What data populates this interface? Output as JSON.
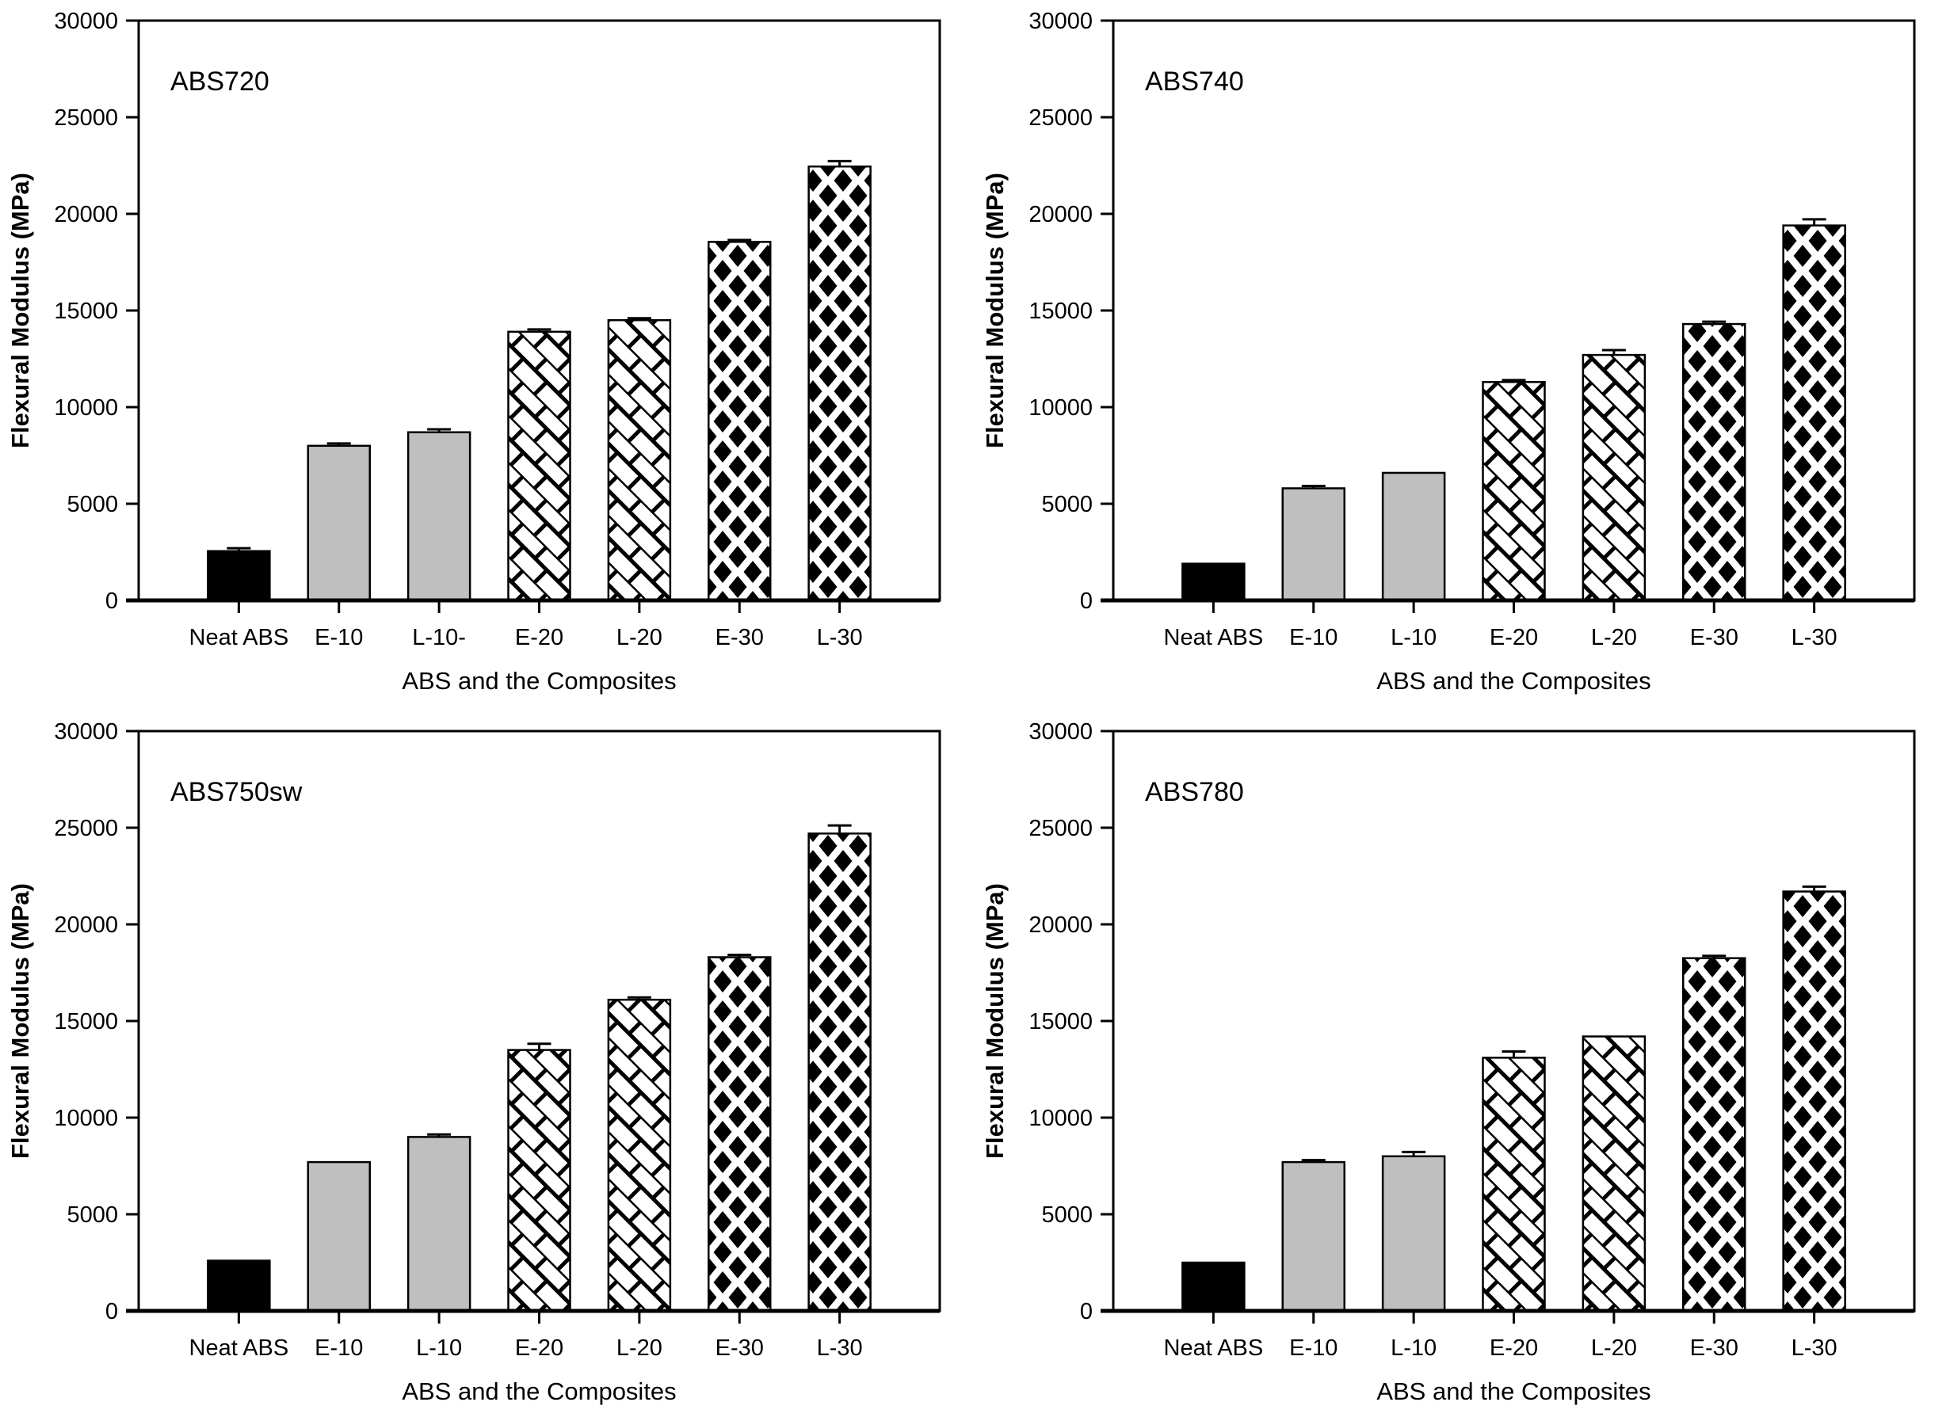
{
  "figure": {
    "background": "#ffffff",
    "text_color": "#000000",
    "bar_outline_color": "#000000",
    "solid_black_fill": "#000000",
    "solid_gray_fill": "#bfbfbf",
    "pattern_kinds_by_category": [
      "solid-black",
      "solid-gray",
      "solid-gray",
      "weave",
      "weave",
      "diamond",
      "diamond"
    ],
    "ylabel": "Flexural Modulus (MPa)",
    "xlabel": "ABS and the Composites",
    "yticks": [
      0,
      5000,
      10000,
      15000,
      20000,
      25000,
      30000
    ],
    "ylim": [
      0,
      30000
    ]
  },
  "chart_data": [
    {
      "type": "bar",
      "title": "ABS720",
      "categories": [
        "Neat ABS",
        "E-10",
        "L-10-",
        "E-20",
        "L-20",
        "E-30",
        "L-30"
      ],
      "values": [
        2550,
        8000,
        8700,
        13900,
        14500,
        18550,
        22450
      ],
      "errors": [
        150,
        120,
        150,
        120,
        100,
        100,
        280
      ],
      "xlabel": "ABS and the Composites",
      "ylabel": "Flexural Modulus (MPa)",
      "ylim": [
        0,
        30000
      ],
      "grid": false,
      "legend": "none"
    },
    {
      "type": "bar",
      "title": "ABS740",
      "categories": [
        "Neat ABS",
        "E-10",
        "L-10",
        "E-20",
        "L-20",
        "E-30",
        "L-30"
      ],
      "values": [
        1900,
        5800,
        6600,
        11300,
        12700,
        14300,
        19400
      ],
      "errors": [
        0,
        120,
        0,
        100,
        250,
        120,
        320
      ],
      "xlabel": "ABS and the Composites",
      "ylabel": "Flexural Modulus (MPa)",
      "ylim": [
        0,
        30000
      ],
      "grid": false,
      "legend": "none"
    },
    {
      "type": "bar",
      "title": "ABS750sw",
      "categories": [
        "Neat ABS",
        "E-10",
        "L-10",
        "E-20",
        "L-20",
        "E-30",
        "L-30"
      ],
      "values": [
        2600,
        7700,
        9000,
        13500,
        16100,
        18300,
        24700
      ],
      "errors": [
        0,
        0,
        130,
        320,
        120,
        120,
        420
      ],
      "xlabel": "ABS and the Composites",
      "ylabel": "Flexural Modulus (MPa)",
      "ylim": [
        0,
        30000
      ],
      "grid": false,
      "legend": "none"
    },
    {
      "type": "bar",
      "title": "ABS780",
      "categories": [
        "Neat ABS",
        "E-10",
        "L-10",
        "E-20",
        "L-20",
        "E-30",
        "L-30"
      ],
      "values": [
        2500,
        7700,
        8000,
        13100,
        14200,
        18250,
        21700
      ],
      "errors": [
        0,
        100,
        220,
        320,
        0,
        120,
        250
      ],
      "xlabel": "ABS and the Composites",
      "ylabel": "Flexural Modulus (MPa)",
      "ylim": [
        0,
        30000
      ],
      "grid": false,
      "legend": "none"
    }
  ]
}
